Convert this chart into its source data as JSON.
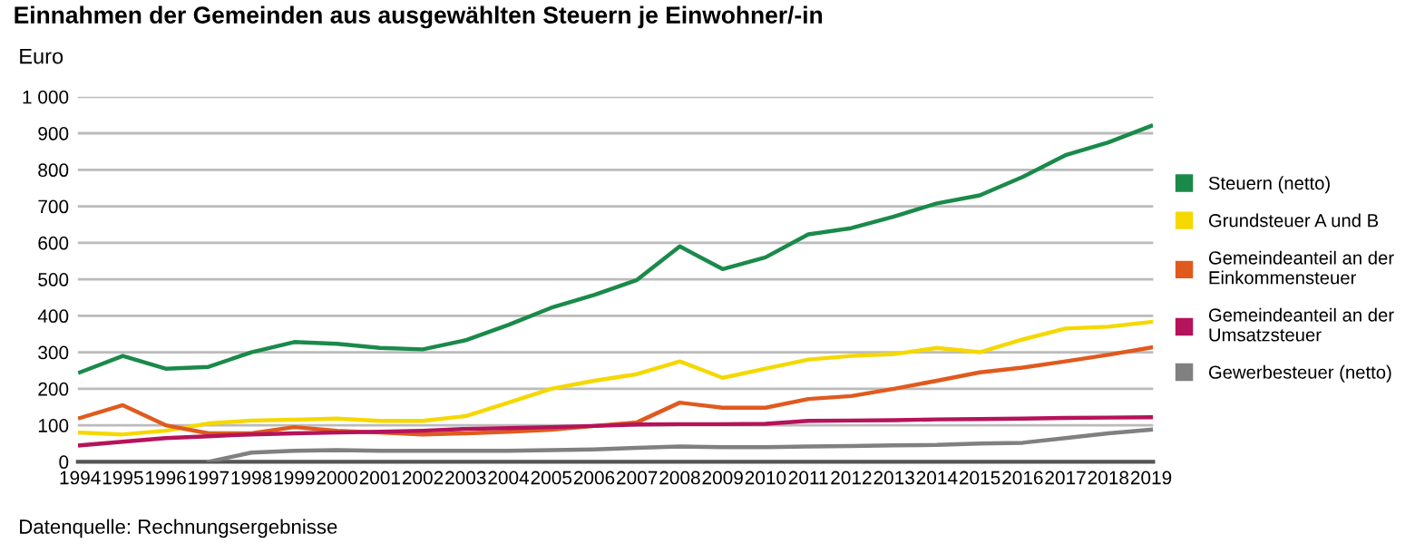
{
  "chart_data": {
    "type": "line",
    "title": "Einnahmen der Gemeinden aus ausgewählten Steuern je Einwohner/-in",
    "ylabel": "Euro",
    "categories": [
      "1994",
      "1995",
      "1996",
      "1997",
      "1998",
      "1999",
      "2000",
      "2001",
      "2002",
      "2003",
      "2004",
      "2005",
      "2006",
      "2007",
      "2008",
      "2009",
      "2010",
      "2011",
      "2012",
      "2013",
      "2014",
      "2015",
      "2016",
      "2017",
      "2018",
      "2019"
    ],
    "series": [
      {
        "name": "Steuern (netto)",
        "color": "#1a8a4a",
        "values": [
          245,
          290,
          255,
          260,
          300,
          328,
          323,
          312,
          308,
          333,
          375,
          422,
          457,
          498,
          590,
          528,
          560,
          623,
          640,
          672,
          708,
          730,
          780,
          840,
          875,
          920
        ]
      },
      {
        "name": "Grundsteuer A und B",
        "color": "#f5d800",
        "values": [
          80,
          75,
          85,
          105,
          113,
          115,
          118,
          112,
          112,
          125,
          162,
          200,
          222,
          240,
          275,
          230,
          255,
          280,
          290,
          295,
          312,
          300,
          335,
          365,
          370,
          383
        ]
      },
      {
        "name": "Gemeindeanteil an der Einkommensteuer",
        "color": "#e05a1e",
        "values": [
          120,
          155,
          100,
          78,
          78,
          95,
          85,
          80,
          75,
          78,
          82,
          88,
          98,
          108,
          162,
          148,
          148,
          172,
          180,
          200,
          222,
          245,
          258,
          275,
          293,
          313
        ]
      },
      {
        "name": "Gemeindeanteil an der Umsatzsteuer",
        "color": "#b5135a",
        "values": [
          45,
          55,
          65,
          70,
          75,
          78,
          80,
          82,
          85,
          90,
          92,
          95,
          98,
          102,
          103,
          103,
          104,
          112,
          113,
          114,
          116,
          117,
          118,
          120,
          121,
          122
        ]
      },
      {
        "name": "Gewerbesteuer (netto)",
        "color": "#808080",
        "values": [
          null,
          null,
          null,
          0,
          25,
          30,
          32,
          30,
          30,
          30,
          30,
          32,
          34,
          38,
          42,
          40,
          40,
          42,
          43,
          45,
          46,
          50,
          52,
          65,
          78,
          88
        ]
      }
    ],
    "ylim": [
      0,
      1000
    ],
    "yticks": [
      0,
      {
        "value": 100,
        "label": "100"
      },
      200,
      300,
      400,
      500,
      600,
      700,
      800,
      900,
      {
        "value": 1000,
        "label": "1 000"
      }
    ],
    "grid": "y",
    "legend": "right",
    "marker": "none",
    "line_style": "solid",
    "annotations": [
      "Datenquelle: Rechnungsergebnisse"
    ]
  }
}
